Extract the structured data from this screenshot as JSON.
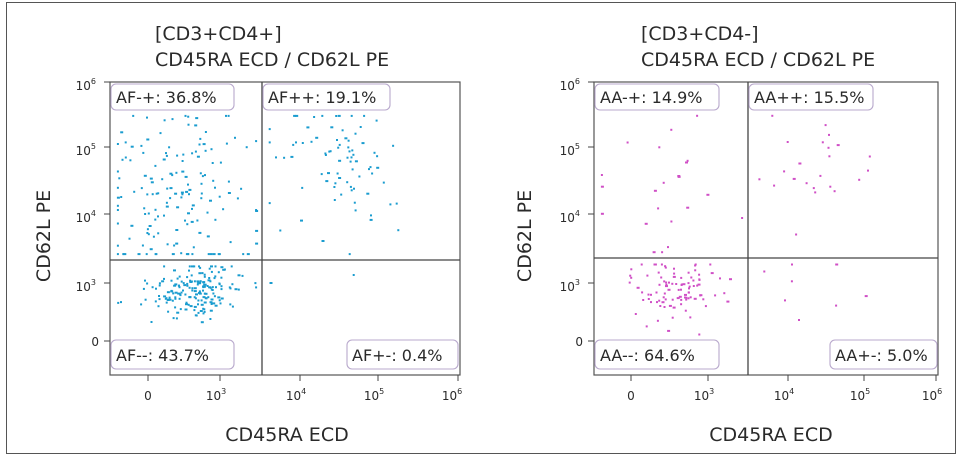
{
  "chart_data": [
    {
      "type": "scatter",
      "title_line1": "[CD3+CD4+]",
      "title_line2": "CD45RA ECD / CD62L PE",
      "xlabel": "CD45RA ECD",
      "ylabel": "CD62L PE",
      "x_scale": "biexponential",
      "y_scale": "biexponential",
      "xlim": [
        -400,
        1000000
      ],
      "ylim": [
        -400,
        1000000
      ],
      "x_ticks": [
        "0",
        "10",
        "10",
        "10",
        "10"
      ],
      "x_tick_exponents": [
        "",
        "3",
        "4",
        "5",
        "6"
      ],
      "y_ticks": [
        "0",
        "10",
        "10",
        "10",
        "10"
      ],
      "y_tick_exponents": [
        "",
        "3",
        "4",
        "5",
        "6"
      ],
      "quadrant_x": 2000,
      "quadrant_y": 1500,
      "point_color": "#1a9ccf",
      "quadrants": [
        {
          "position": "top-left",
          "label": "AF-+: 36.8%",
          "percent": 36.8
        },
        {
          "position": "top-right",
          "label": "AF++: 19.1%",
          "percent": 19.1
        },
        {
          "position": "bottom-left",
          "label": "AF--: 43.7%",
          "percent": 43.7
        },
        {
          "position": "bottom-right",
          "label": "AF+-: 0.4%",
          "percent": 0.4
        }
      ],
      "grid": false
    },
    {
      "type": "scatter",
      "title_line1": "[CD3+CD4-]",
      "title_line2": "CD45RA ECD / CD62L PE",
      "xlabel": "CD45RA ECD",
      "ylabel": "CD62L PE",
      "x_scale": "biexponential",
      "y_scale": "biexponential",
      "xlim": [
        -400,
        1000000
      ],
      "ylim": [
        -400,
        1000000
      ],
      "x_ticks": [
        "0",
        "10",
        "10",
        "10",
        "10"
      ],
      "x_tick_exponents": [
        "",
        "3",
        "4",
        "5",
        "6"
      ],
      "y_ticks": [
        "0",
        "10",
        "10",
        "10",
        "10"
      ],
      "y_tick_exponents": [
        "",
        "3",
        "4",
        "5",
        "6"
      ],
      "quadrant_x": 2000,
      "quadrant_y": 1500,
      "point_color": "#d04fc6",
      "quadrants": [
        {
          "position": "top-left",
          "label": "AA-+: 14.9%",
          "percent": 14.9
        },
        {
          "position": "top-right",
          "label": "AA++: 15.5%",
          "percent": 15.5
        },
        {
          "position": "bottom-left",
          "label": "AA--: 64.6%",
          "percent": 64.6
        },
        {
          "position": "bottom-right",
          "label": "AA+-: 5.0%",
          "percent": 5.0
        }
      ],
      "grid": false
    }
  ]
}
